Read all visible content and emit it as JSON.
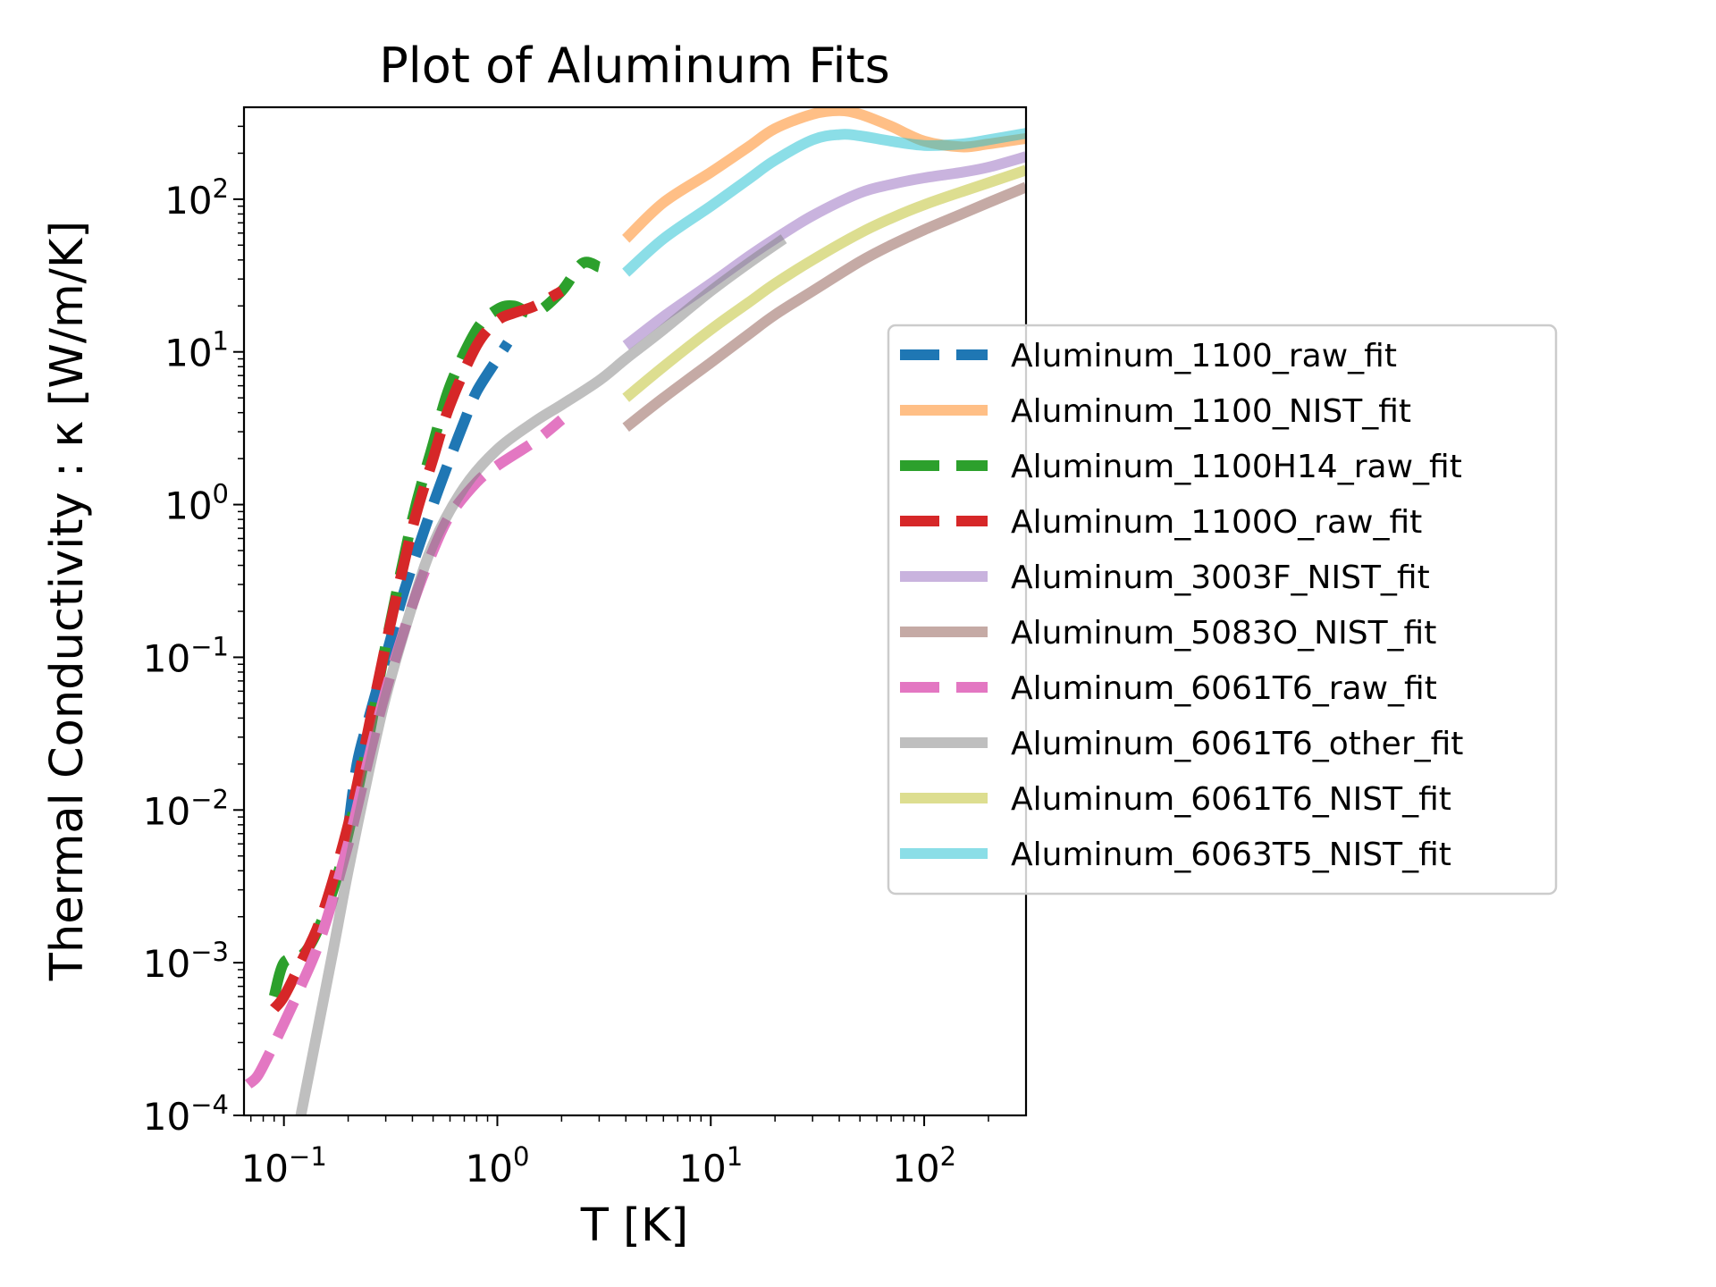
{
  "chart_data": {
    "type": "line",
    "title": "Plot of Aluminum Fits",
    "xlabel": "T [K]",
    "ylabel": "Thermal Conductivity : κ [W/m/K]",
    "xscale": "log",
    "yscale": "log",
    "xlim": [
      0.065,
      300
    ],
    "ylim": [
      0.0001,
      400
    ],
    "grid": false,
    "legend_position": "right-center",
    "x_ticks": [
      {
        "value": 0.1,
        "base": "10",
        "exp": "−1"
      },
      {
        "value": 1,
        "base": "10",
        "exp": "0"
      },
      {
        "value": 10,
        "base": "10",
        "exp": "1"
      },
      {
        "value": 100,
        "base": "10",
        "exp": "2"
      }
    ],
    "y_ticks": [
      {
        "value": 0.0001,
        "base": "10",
        "exp": "−4"
      },
      {
        "value": 0.001,
        "base": "10",
        "exp": "−3"
      },
      {
        "value": 0.01,
        "base": "10",
        "exp": "−2"
      },
      {
        "value": 0.1,
        "base": "10",
        "exp": "−1"
      },
      {
        "value": 1,
        "base": "10",
        "exp": "0"
      },
      {
        "value": 10,
        "base": "10",
        "exp": "1"
      },
      {
        "value": 100,
        "base": "10",
        "exp": "2"
      }
    ],
    "series": [
      {
        "name": "Aluminum_1100_raw_fit",
        "color": "#1f77b4",
        "style": "dashed",
        "alpha": 1.0,
        "x": [
          0.2,
          0.22,
          0.25,
          0.3,
          0.35,
          0.4,
          0.5,
          0.6,
          0.7,
          0.8,
          1.0,
          1.12
        ],
        "y": [
          0.0075,
          0.02,
          0.04,
          0.1,
          0.22,
          0.4,
          1.0,
          2.0,
          3.5,
          5.5,
          9.0,
          11.5
        ]
      },
      {
        "name": "Aluminum_1100_NIST_fit",
        "color": "#ff7f0e",
        "style": "solid",
        "alpha": 0.5,
        "x": [
          4,
          6,
          10,
          15,
          20,
          30,
          40,
          50,
          70,
          100,
          150,
          200,
          300
        ],
        "y": [
          55,
          95,
          150,
          220,
          290,
          360,
          380,
          360,
          300,
          240,
          220,
          230,
          250
        ]
      },
      {
        "name": "Aluminum_1100H14_raw_fit",
        "color": "#2ca02c",
        "style": "dashed",
        "alpha": 1.0,
        "x": [
          0.09,
          0.1,
          0.12,
          0.14,
          0.17,
          0.2,
          0.25,
          0.3,
          0.4,
          0.5,
          0.6,
          0.8,
          1.0,
          1.2,
          1.5,
          2.0,
          2.5,
          3.0
        ],
        "y": [
          0.0006,
          0.001,
          0.0011,
          0.0015,
          0.003,
          0.007,
          0.03,
          0.12,
          0.8,
          2.5,
          6.0,
          14.0,
          19.0,
          20.0,
          18.0,
          25.0,
          38.0,
          36.0
        ]
      },
      {
        "name": "Aluminum_1100O_raw_fit",
        "color": "#d62728",
        "style": "dashed",
        "alpha": 1.0,
        "x": [
          0.09,
          0.1,
          0.12,
          0.15,
          0.2,
          0.25,
          0.3,
          0.4,
          0.5,
          0.6,
          0.8,
          1.0,
          1.2,
          1.5,
          2.0
        ],
        "y": [
          0.0005,
          0.0006,
          0.001,
          0.002,
          0.008,
          0.035,
          0.12,
          0.7,
          2.0,
          4.5,
          11.0,
          16.0,
          18.0,
          20.0,
          25.0
        ]
      },
      {
        "name": "Aluminum_3003F_NIST_fit",
        "color": "#9467bd",
        "style": "solid",
        "alpha": 0.5,
        "x": [
          4,
          6,
          10,
          15,
          20,
          30,
          50,
          70,
          100,
          150,
          200,
          300
        ],
        "y": [
          11,
          17,
          28,
          42,
          55,
          78,
          110,
          125,
          138,
          150,
          162,
          190
        ]
      },
      {
        "name": "Aluminum_5083O_NIST_fit",
        "color": "#8c564b",
        "style": "solid",
        "alpha": 0.5,
        "x": [
          4,
          6,
          10,
          15,
          20,
          30,
          50,
          70,
          100,
          150,
          200,
          300
        ],
        "y": [
          3.2,
          5.0,
          8.5,
          13.0,
          17.5,
          25.0,
          39.0,
          50.0,
          63.0,
          80.0,
          95.0,
          120.0
        ]
      },
      {
        "name": "Aluminum_6061T6_raw_fit",
        "color": "#e377c2",
        "style": "dashed",
        "alpha": 1.0,
        "x": [
          0.068,
          0.075,
          0.085,
          0.1,
          0.12,
          0.15,
          0.2,
          0.25,
          0.3,
          0.4,
          0.5,
          0.6,
          0.8,
          1.0,
          1.5,
          2.0
        ],
        "y": [
          0.00016,
          0.00018,
          0.00025,
          0.0004,
          0.0007,
          0.0015,
          0.006,
          0.022,
          0.06,
          0.22,
          0.5,
          0.85,
          1.4,
          1.8,
          2.6,
          3.6
        ]
      },
      {
        "name": "Aluminum_6061T6_other_fit",
        "color": "#7f7f7f",
        "style": "solid",
        "alpha": 0.5,
        "x": [
          0.12,
          0.14,
          0.17,
          0.2,
          0.25,
          0.3,
          0.4,
          0.5,
          0.7,
          1.0,
          1.5,
          2.0,
          3.0,
          4.0,
          6.0,
          10.0,
          15.0,
          22.0
        ],
        "y": [
          0.0001,
          0.0003,
          0.0012,
          0.004,
          0.018,
          0.055,
          0.22,
          0.55,
          1.3,
          2.3,
          3.5,
          4.5,
          6.5,
          9.0,
          14.0,
          25.0,
          38.0,
          55.0
        ]
      },
      {
        "name": "Aluminum_6061T6_NIST_fit",
        "color": "#bcbd22",
        "style": "solid",
        "alpha": 0.5,
        "x": [
          4,
          6,
          10,
          15,
          20,
          30,
          50,
          70,
          100,
          150,
          200,
          300
        ],
        "y": [
          5.0,
          8.0,
          14.0,
          21.0,
          28.0,
          40.0,
          60.0,
          75.0,
          92.0,
          112.0,
          128.0,
          155.0
        ]
      },
      {
        "name": "Aluminum_6063T5_NIST_fit",
        "color": "#17becf",
        "style": "solid",
        "alpha": 0.5,
        "x": [
          4,
          6,
          10,
          15,
          20,
          30,
          40,
          50,
          70,
          100,
          150,
          200,
          300
        ],
        "y": [
          33,
          55,
          90,
          135,
          180,
          245,
          265,
          260,
          240,
          225,
          230,
          245,
          270
        ]
      }
    ]
  }
}
